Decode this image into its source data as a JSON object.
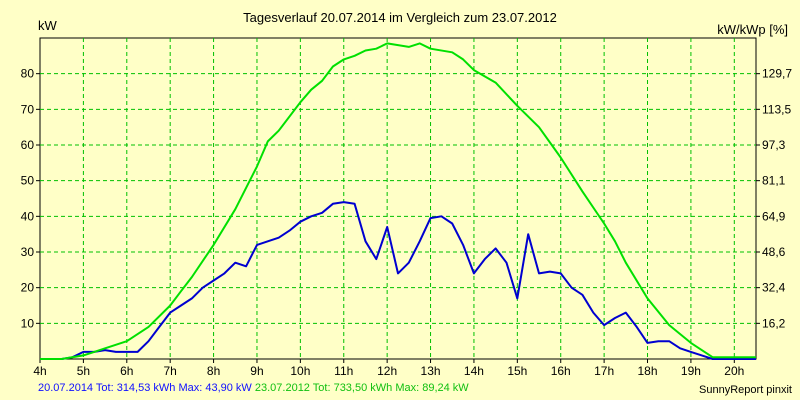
{
  "chart_data": {
    "type": "line",
    "title": "Tagesverlauf 20.07.2014 im Vergleich zum 23.07.2012",
    "ylabel_left": "kW",
    "ylabel_right": "kW/kWp [%]",
    "xlim": [
      4,
      20.5
    ],
    "ylim": [
      0,
      90
    ],
    "x_ticks": [
      4,
      5,
      6,
      7,
      8,
      9,
      10,
      11,
      12,
      13,
      14,
      15,
      16,
      17,
      18,
      19,
      20
    ],
    "x_tick_labels": [
      "4h",
      "5h",
      "6h",
      "7h",
      "8h",
      "9h",
      "10h",
      "11h",
      "12h",
      "13h",
      "14h",
      "15h",
      "16h",
      "17h",
      "18h",
      "19h",
      "20h"
    ],
    "y_ticks_left": [
      10,
      20,
      30,
      40,
      50,
      60,
      70,
      80
    ],
    "y_ticks_right": [
      {
        "y": 10,
        "label": "16,2"
      },
      {
        "y": 20,
        "label": "32,4"
      },
      {
        "y": 30,
        "label": "48,6"
      },
      {
        "y": 40,
        "label": "64,9"
      },
      {
        "y": 50,
        "label": "81,1"
      },
      {
        "y": 60,
        "label": "97,3"
      },
      {
        "y": 70,
        "label": "113,5"
      },
      {
        "y": 80,
        "label": "129,7"
      }
    ],
    "grid": true,
    "series": [
      {
        "name": "20.07.2014",
        "color": "#0000d0",
        "points": [
          [
            4,
            0
          ],
          [
            4.5,
            0
          ],
          [
            4.75,
            0.5
          ],
          [
            5,
            2
          ],
          [
            5.25,
            2
          ],
          [
            5.5,
            2.5
          ],
          [
            5.75,
            2
          ],
          [
            6,
            2
          ],
          [
            6.25,
            2
          ],
          [
            6.5,
            5
          ],
          [
            6.75,
            9
          ],
          [
            7,
            13
          ],
          [
            7.25,
            15
          ],
          [
            7.5,
            17
          ],
          [
            7.75,
            20
          ],
          [
            8,
            22
          ],
          [
            8.25,
            24
          ],
          [
            8.5,
            27
          ],
          [
            8.75,
            26
          ],
          [
            9,
            32
          ],
          [
            9.25,
            33
          ],
          [
            9.5,
            34
          ],
          [
            9.75,
            36
          ],
          [
            10,
            38.5
          ],
          [
            10.25,
            40
          ],
          [
            10.5,
            41
          ],
          [
            10.75,
            43.5
          ],
          [
            11,
            44
          ],
          [
            11.25,
            43.5
          ],
          [
            11.5,
            33
          ],
          [
            11.75,
            28
          ],
          [
            12,
            37
          ],
          [
            12.25,
            24
          ],
          [
            12.5,
            27
          ],
          [
            12.75,
            33
          ],
          [
            13,
            39.5
          ],
          [
            13.25,
            40
          ],
          [
            13.5,
            38
          ],
          [
            13.75,
            32
          ],
          [
            14,
            24
          ],
          [
            14.25,
            28
          ],
          [
            14.5,
            31
          ],
          [
            14.75,
            27
          ],
          [
            15,
            17
          ],
          [
            15.25,
            35
          ],
          [
            15.5,
            24
          ],
          [
            15.75,
            24.5
          ],
          [
            16,
            24
          ],
          [
            16.25,
            20
          ],
          [
            16.5,
            18
          ],
          [
            16.75,
            13
          ],
          [
            17,
            9.5
          ],
          [
            17.25,
            11.5
          ],
          [
            17.5,
            13
          ],
          [
            17.75,
            9
          ],
          [
            18,
            4.5
          ],
          [
            18.25,
            5
          ],
          [
            18.5,
            5
          ],
          [
            18.75,
            3
          ],
          [
            19,
            2
          ],
          [
            19.25,
            1
          ],
          [
            19.5,
            0
          ],
          [
            20.5,
            0
          ]
        ]
      },
      {
        "name": "23.07.2012",
        "color": "#00e000",
        "points": [
          [
            4,
            0
          ],
          [
            4.5,
            0
          ],
          [
            5,
            1
          ],
          [
            5.25,
            2
          ],
          [
            5.5,
            3
          ],
          [
            6,
            5
          ],
          [
            6.5,
            9
          ],
          [
            7,
            15
          ],
          [
            7.25,
            19
          ],
          [
            7.5,
            23
          ],
          [
            8,
            32
          ],
          [
            8.5,
            42
          ],
          [
            9,
            54
          ],
          [
            9.25,
            61
          ],
          [
            9.5,
            64
          ],
          [
            10,
            72
          ],
          [
            10.25,
            75.5
          ],
          [
            10.5,
            78
          ],
          [
            10.75,
            82
          ],
          [
            11,
            84
          ],
          [
            11.25,
            85
          ],
          [
            11.5,
            86.5
          ],
          [
            11.75,
            87
          ],
          [
            12,
            88.5
          ],
          [
            12.25,
            88
          ],
          [
            12.5,
            87.5
          ],
          [
            12.75,
            88.5
          ],
          [
            13,
            87
          ],
          [
            13.5,
            86
          ],
          [
            13.75,
            84
          ],
          [
            14,
            81
          ],
          [
            14.5,
            77.5
          ],
          [
            15,
            71
          ],
          [
            15.5,
            65
          ],
          [
            16,
            56.5
          ],
          [
            16.5,
            47
          ],
          [
            17,
            38
          ],
          [
            17.25,
            33
          ],
          [
            17.5,
            27
          ],
          [
            18,
            17
          ],
          [
            18.5,
            9.5
          ],
          [
            19,
            4.5
          ],
          [
            19.5,
            0.5
          ],
          [
            20.5,
            0.5
          ]
        ]
      }
    ]
  },
  "legend": {
    "series1_text": "20.07.2014 Tot: 314,53 kWh Max: 43,90 kW",
    "series2_text": "23.07.2012 Tot: 733,50 kWh Max: 89,24 kW"
  },
  "credit": "SunnyReport pinxit"
}
